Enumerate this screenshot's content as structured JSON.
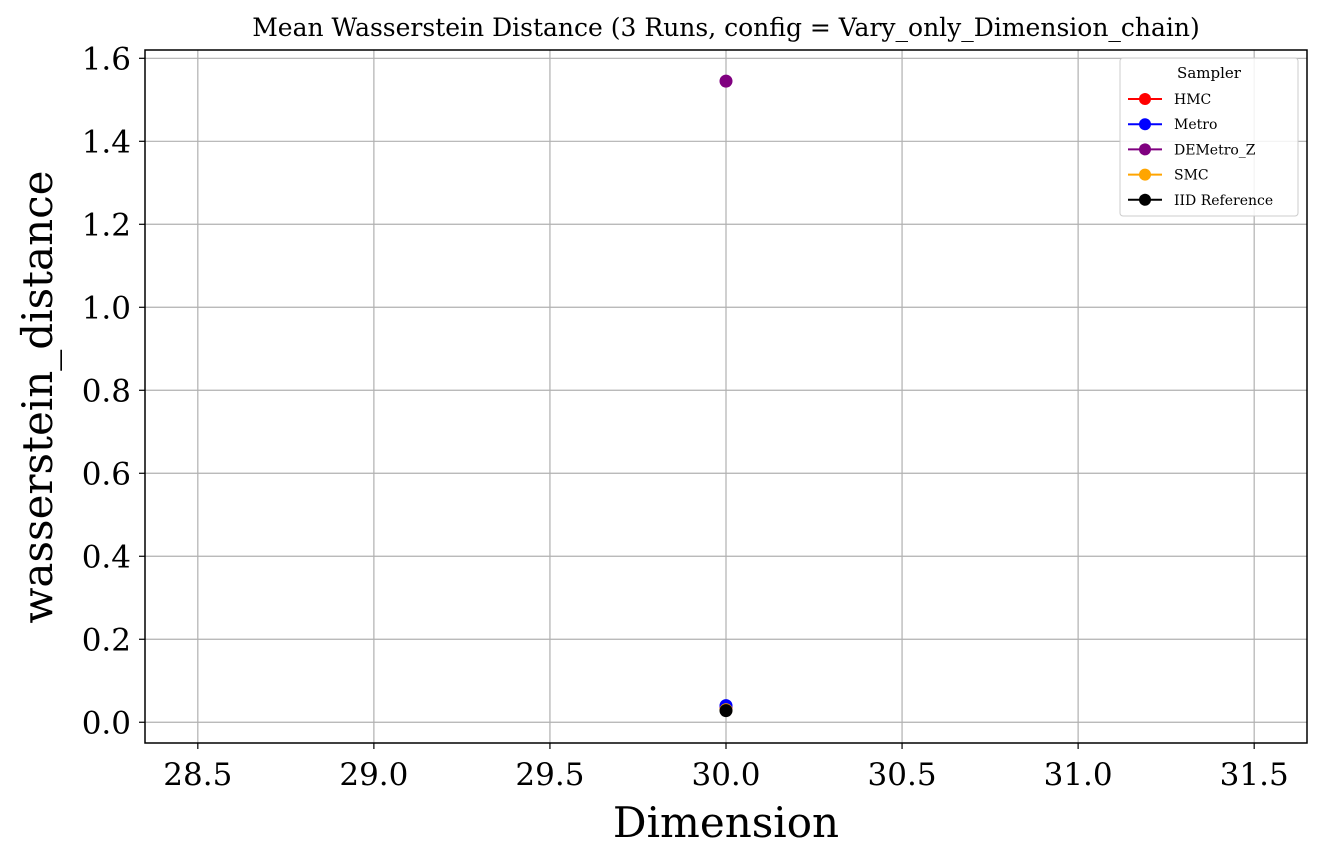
{
  "chart_data": {
    "type": "scatter",
    "title": "Mean Wasserstein Distance (3 Runs, config = Vary_only_Dimension_chain)",
    "xlabel": "Dimension",
    "ylabel": "wasserstein_distance",
    "xlim": [
      28.35,
      31.65
    ],
    "ylim": [
      -0.05,
      1.62
    ],
    "xticks": [
      28.5,
      29.0,
      29.5,
      30.0,
      30.5,
      31.0,
      31.5
    ],
    "xtick_labels": [
      "28.5",
      "29.0",
      "29.5",
      "30.0",
      "30.5",
      "31.0",
      "31.5"
    ],
    "yticks": [
      0.0,
      0.2,
      0.4,
      0.6,
      0.8,
      1.0,
      1.2,
      1.4,
      1.6
    ],
    "ytick_labels": [
      "0.0",
      "0.2",
      "0.4",
      "0.6",
      "0.8",
      "1.0",
      "1.2",
      "1.4",
      "1.6"
    ],
    "grid": true,
    "legend": {
      "title": "Sampler",
      "position": "upper-right"
    },
    "series": [
      {
        "name": "HMC",
        "color": "#ff0000",
        "x": [
          30.0
        ],
        "y": [
          0.035
        ]
      },
      {
        "name": "Metro",
        "color": "#0000ff",
        "x": [
          30.0
        ],
        "y": [
          0.04
        ]
      },
      {
        "name": "DEMetro_Z",
        "color": "#800080",
        "x": [
          30.0
        ],
        "y": [
          1.545
        ]
      },
      {
        "name": "SMC",
        "color": "#ffa500",
        "x": [
          30.0
        ],
        "y": [
          0.03
        ]
      },
      {
        "name": "IID Reference",
        "color": "#000000",
        "x": [
          30.0
        ],
        "y": [
          0.028
        ]
      }
    ]
  }
}
